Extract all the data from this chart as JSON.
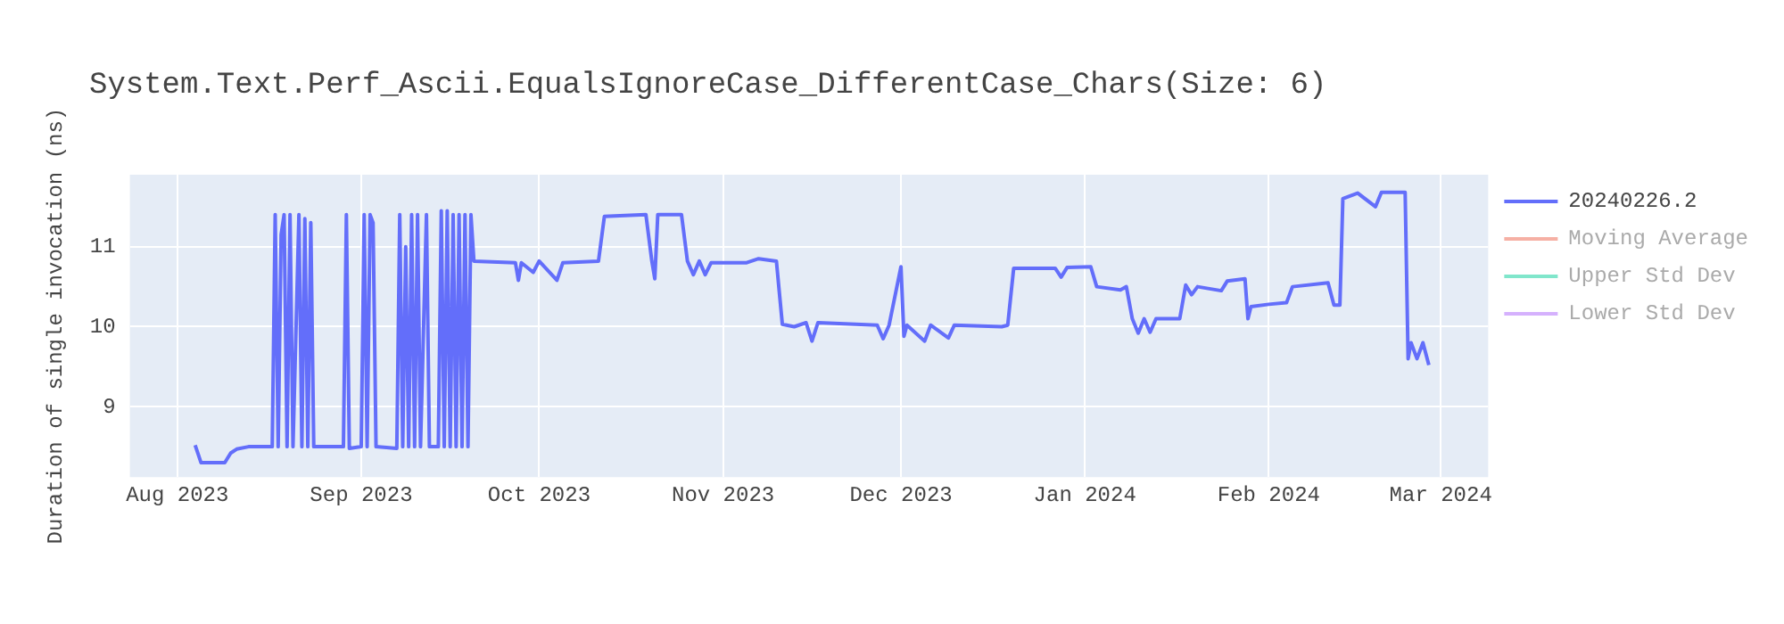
{
  "chart_data": {
    "type": "line",
    "title": "System.Text.Perf_Ascii.EqualsIgnoreCase_DifferentCase_Chars(Size: 6)",
    "ylabel": "Duration of single invocation (ns)",
    "xlim": [
      "2023-07-24",
      "2024-03-09"
    ],
    "xticks": [
      {
        "value": "2023-08-01",
        "label": "Aug 2023"
      },
      {
        "value": "2023-09-01",
        "label": "Sep 2023"
      },
      {
        "value": "2023-10-01",
        "label": "Oct 2023"
      },
      {
        "value": "2023-11-01",
        "label": "Nov 2023"
      },
      {
        "value": "2023-12-01",
        "label": "Dec 2023"
      },
      {
        "value": "2024-01-01",
        "label": "Jan 2024"
      },
      {
        "value": "2024-02-01",
        "label": "Feb 2024"
      },
      {
        "value": "2024-03-01",
        "label": "Mar 2024"
      }
    ],
    "ylim": [
      8.12,
      11.9
    ],
    "yticks": [
      9,
      10,
      11
    ],
    "grid": true,
    "legend": "top right",
    "marker": "none",
    "line_style": "solid",
    "series": [
      {
        "name": "20240226.2",
        "color": "#636efa",
        "x": [
          "2023-08-04",
          "2023-08-05",
          "2023-08-09",
          "2023-08-10",
          "2023-08-11",
          "2023-08-13",
          "2023-08-17",
          "2023-08-17T12:00",
          "2023-08-18",
          "2023-08-18T12:00",
          "2023-08-19",
          "2023-08-19T12:00",
          "2023-08-20",
          "2023-08-20T12:00",
          "2023-08-21T12:00",
          "2023-08-22",
          "2023-08-22T12:00",
          "2023-08-23",
          "2023-08-23T12:00",
          "2023-08-24",
          "2023-08-29",
          "2023-08-29T12:00",
          "2023-08-30",
          "2023-09-01",
          "2023-09-01T12:00",
          "2023-09-02",
          "2023-09-02T12:00",
          "2023-09-03",
          "2023-09-03T12:00",
          "2023-09-07",
          "2023-09-07T12:00",
          "2023-09-08",
          "2023-09-08T12:00",
          "2023-09-09",
          "2023-09-09T12:00",
          "2023-09-10",
          "2023-09-10T12:00",
          "2023-09-11",
          "2023-09-12",
          "2023-09-12T12:00",
          "2023-09-14",
          "2023-09-14T12:00",
          "2023-09-15",
          "2023-09-15T12:00",
          "2023-09-16",
          "2023-09-16T12:00",
          "2023-09-17",
          "2023-09-17T12:00",
          "2023-09-18",
          "2023-09-18T12:00",
          "2023-09-19",
          "2023-09-19T12:00",
          "2023-09-20",
          "2023-09-27",
          "2023-09-27T12:00",
          "2023-09-28",
          "2023-09-30",
          "2023-10-01",
          "2023-10-04",
          "2023-10-05",
          "2023-10-11",
          "2023-10-12",
          "2023-10-19",
          "2023-10-20",
          "2023-10-20T12:00",
          "2023-10-21",
          "2023-10-25",
          "2023-10-26",
          "2023-10-27",
          "2023-10-28",
          "2023-10-29",
          "2023-10-30",
          "2023-11-05",
          "2023-11-07",
          "2023-11-10",
          "2023-11-11",
          "2023-11-13",
          "2023-11-15",
          "2023-11-16",
          "2023-11-17",
          "2023-11-27",
          "2023-11-28",
          "2023-11-29",
          "2023-12-01",
          "2023-12-01T12:00",
          "2023-12-02",
          "2023-12-05",
          "2023-12-06",
          "2023-12-09",
          "2023-12-10",
          "2023-12-18",
          "2023-12-19",
          "2023-12-20",
          "2023-12-27",
          "2023-12-28",
          "2023-12-29",
          "2024-01-02",
          "2024-01-03",
          "2024-01-07",
          "2024-01-08",
          "2024-01-09",
          "2024-01-10",
          "2024-01-11",
          "2024-01-12",
          "2024-01-13",
          "2024-01-17",
          "2024-01-18",
          "2024-01-19",
          "2024-01-20",
          "2024-01-24",
          "2024-01-25",
          "2024-01-28",
          "2024-01-28T12:00",
          "2024-01-29",
          "2024-02-01",
          "2024-02-04",
          "2024-02-05",
          "2024-02-11",
          "2024-02-12",
          "2024-02-13",
          "2024-02-13T12:00",
          "2024-02-16",
          "2024-02-19",
          "2024-02-20",
          "2024-02-24",
          "2024-02-24T12:00",
          "2024-02-25",
          "2024-02-26",
          "2024-02-27",
          "2024-02-28"
        ],
        "values": [
          8.52,
          8.3,
          8.3,
          8.42,
          8.47,
          8.5,
          8.5,
          11.4,
          8.5,
          11.15,
          11.4,
          8.5,
          11.4,
          8.5,
          11.4,
          8.5,
          11.35,
          8.5,
          11.3,
          8.5,
          8.5,
          11.4,
          8.48,
          8.5,
          11.4,
          8.5,
          11.4,
          11.3,
          8.5,
          8.48,
          11.4,
          8.5,
          11.0,
          8.5,
          11.4,
          8.5,
          11.4,
          8.5,
          11.4,
          8.5,
          8.5,
          11.45,
          8.5,
          11.45,
          8.5,
          11.4,
          8.5,
          11.4,
          8.5,
          11.4,
          8.5,
          11.4,
          10.82,
          10.8,
          10.58,
          10.8,
          10.68,
          10.82,
          10.58,
          10.8,
          10.82,
          11.38,
          11.4,
          10.82,
          10.6,
          11.4,
          11.4,
          10.82,
          10.65,
          10.82,
          10.65,
          10.8,
          10.8,
          10.85,
          10.82,
          10.03,
          10.0,
          10.05,
          9.82,
          10.05,
          10.02,
          9.85,
          10.02,
          10.75,
          9.88,
          10.02,
          9.82,
          10.02,
          9.86,
          10.02,
          10.0,
          10.02,
          10.73,
          10.73,
          10.62,
          10.74,
          10.75,
          10.5,
          10.46,
          10.5,
          10.1,
          9.92,
          10.1,
          9.93,
          10.1,
          10.1,
          10.52,
          10.4,
          10.5,
          10.45,
          10.57,
          10.6,
          10.1,
          10.25,
          10.28,
          10.3,
          10.5,
          10.55,
          10.27,
          10.27,
          11.6,
          11.67,
          11.5,
          11.68,
          11.68,
          9.6,
          9.8,
          9.6,
          9.8,
          9.52
        ]
      },
      {
        "name": "Moving Average",
        "color": "#f6b0a4"
      },
      {
        "name": "Upper Std Dev",
        "color": "#80e6cb"
      },
      {
        "name": "Lower Std Dev",
        "color": "#d5b1fd"
      }
    ]
  }
}
